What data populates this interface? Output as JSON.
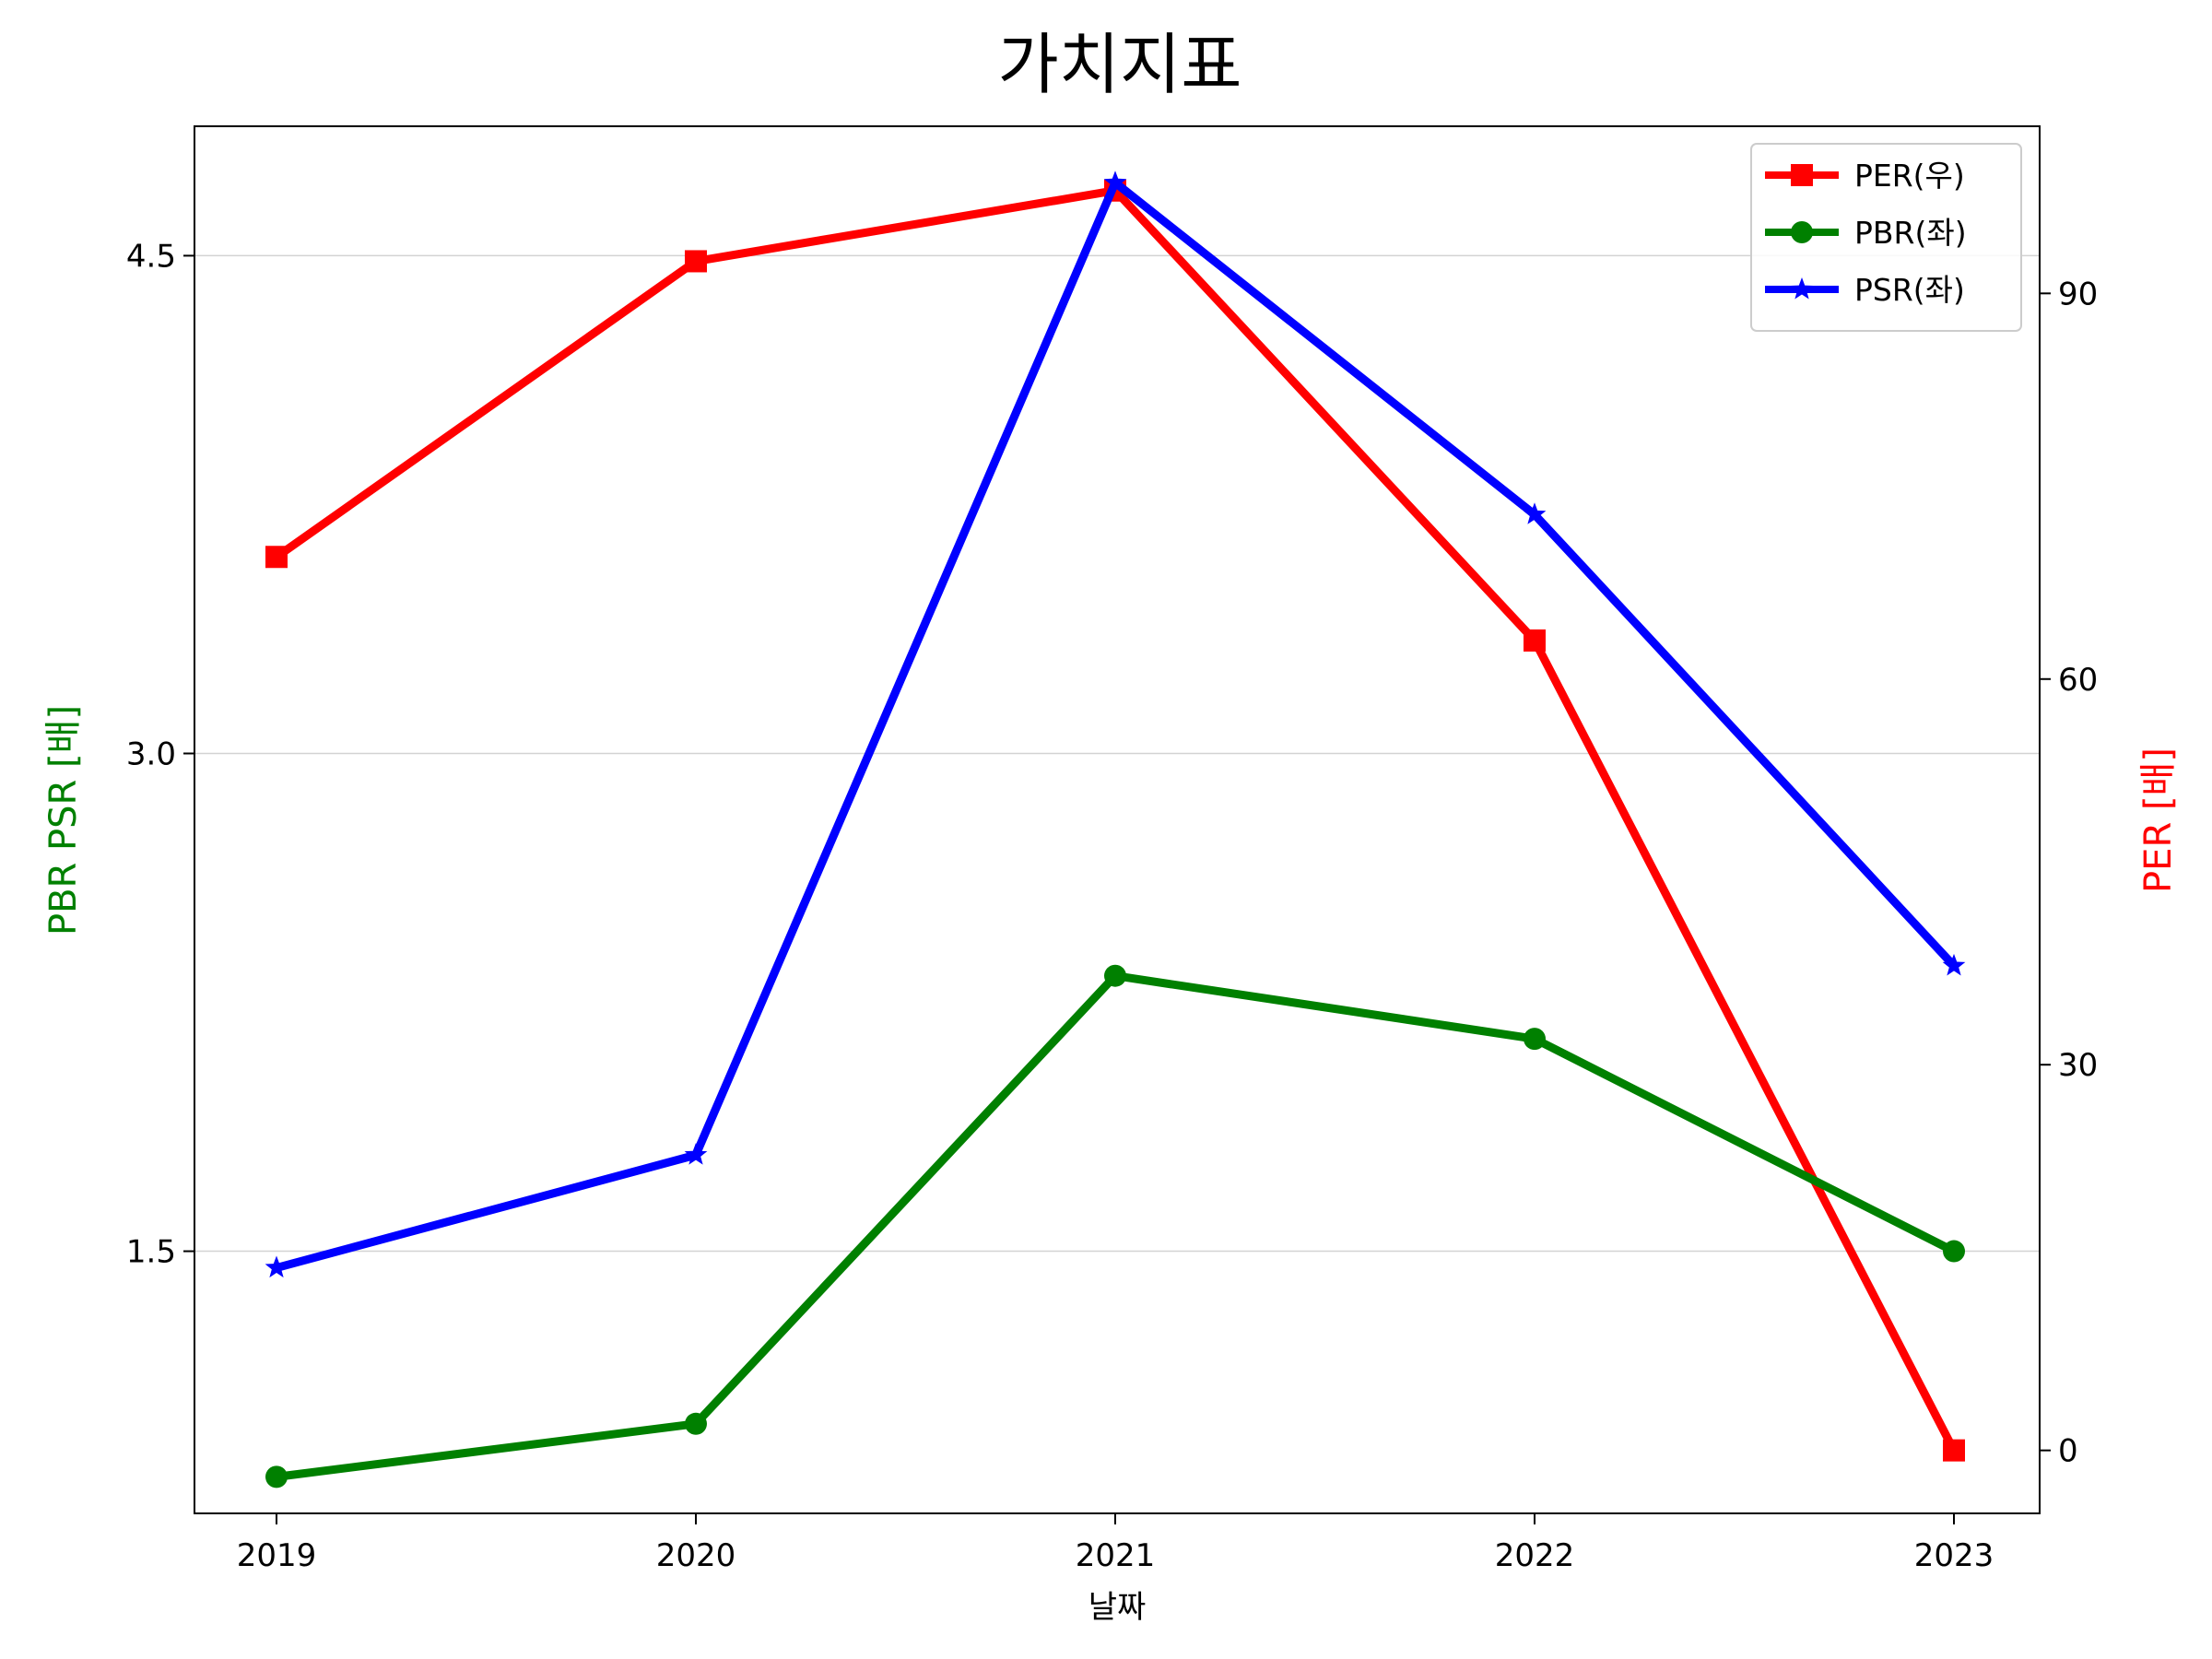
{
  "chart_data": {
    "type": "line",
    "title": "가치지표",
    "xlabel": "날짜",
    "ylabel_left": "PBR PSR [배]",
    "ylabel_right": "PER [배]",
    "x": [
      "2019",
      "2020",
      "2021",
      "2022",
      "2023"
    ],
    "y_left_ticks": [
      "1.5",
      "3.0",
      "4.5"
    ],
    "y_left_ticks_values": [
      1.5,
      3.0,
      4.5
    ],
    "y_right_ticks": [
      "0",
      "30",
      "60",
      "90"
    ],
    "y_right_ticks_values": [
      0,
      30,
      60,
      90
    ],
    "ylim_left": [
      0.71,
      4.89
    ],
    "ylim_right": [
      -4.9,
      103.0
    ],
    "grid": "horizontal, left axis",
    "legend_placement": "top-right",
    "colors": {
      "left_label": "#008000",
      "right_label": "#ff0000"
    },
    "series": [
      {
        "name": "PER(우)",
        "axis": "right",
        "color": "#ff0000",
        "marker": "square",
        "values": [
          69.5,
          92.5,
          98.0,
          63.0,
          0.0
        ]
      },
      {
        "name": "PBR(좌)",
        "axis": "left",
        "color": "#008000",
        "marker": "circle",
        "values": [
          0.82,
          0.98,
          2.33,
          2.14,
          1.5
        ]
      },
      {
        "name": "PSR(좌)",
        "axis": "left",
        "color": "#0000ff",
        "marker": "star",
        "values": [
          1.45,
          1.79,
          4.72,
          3.72,
          2.36
        ]
      }
    ]
  }
}
